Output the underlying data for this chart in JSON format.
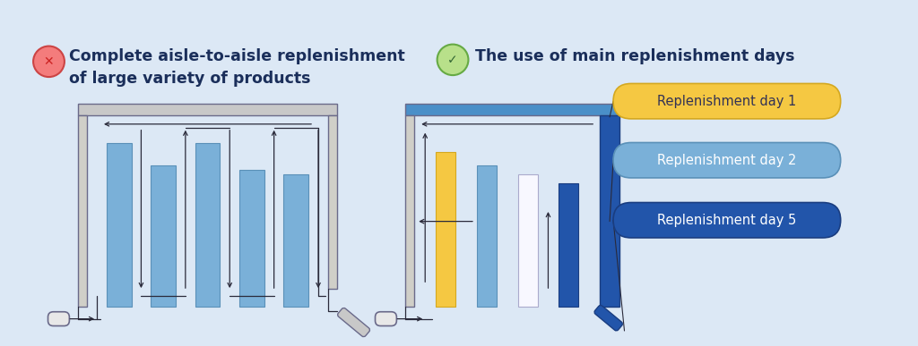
{
  "bg_color": "#dce8f5",
  "title_left": "Complete aisle-to-aisle replenishment\nof large variety of products",
  "title_right": "The use of main replenishment days",
  "title_color": "#1a2e5a",
  "title_fontsize": 12.5,
  "icon_x_color": "#f47c7c",
  "icon_check_color": "#b8e08a",
  "shelf_outline_color": "#6a6a8a",
  "shelf_top_gray": "#c8c8c8",
  "shelf_top_blue": "#4a8fc8",
  "shelf_wall_color": "#d0cfc8",
  "aisle_blue": "#7ab0d8",
  "aisle_blue_edge": "#5a90b8",
  "aisle_yellow": "#f5c842",
  "aisle_yellow_edge": "#d4a820",
  "aisle_dark_blue": "#2255aa",
  "aisle_dark_blue_edge": "#1a3d80",
  "aisle_white": "#f8f8ff",
  "aisle_white_edge": "#aaaacc",
  "arrow_color": "#2a2a3a",
  "label_day1_bg": "#f5c842",
  "label_day1_edge": "#d4a820",
  "label_day2_bg": "#7ab0d8",
  "label_day2_edge": "#5a90b8",
  "label_day5_bg": "#2255aa",
  "label_day5_edge": "#1a3d80",
  "label_day1_text_color": "#333355",
  "label_day2_text_color": "#ffffff",
  "label_day5_text_color": "#ffffff",
  "label_day1_text": "Replenishment day 1",
  "label_day2_text": "Replenishment day 2",
  "label_day5_text": "Replenishment day 5",
  "cart_color": "#e8e8e8",
  "cart_edge": "#6a6a8a",
  "scanner_color": "#4a6a9a"
}
